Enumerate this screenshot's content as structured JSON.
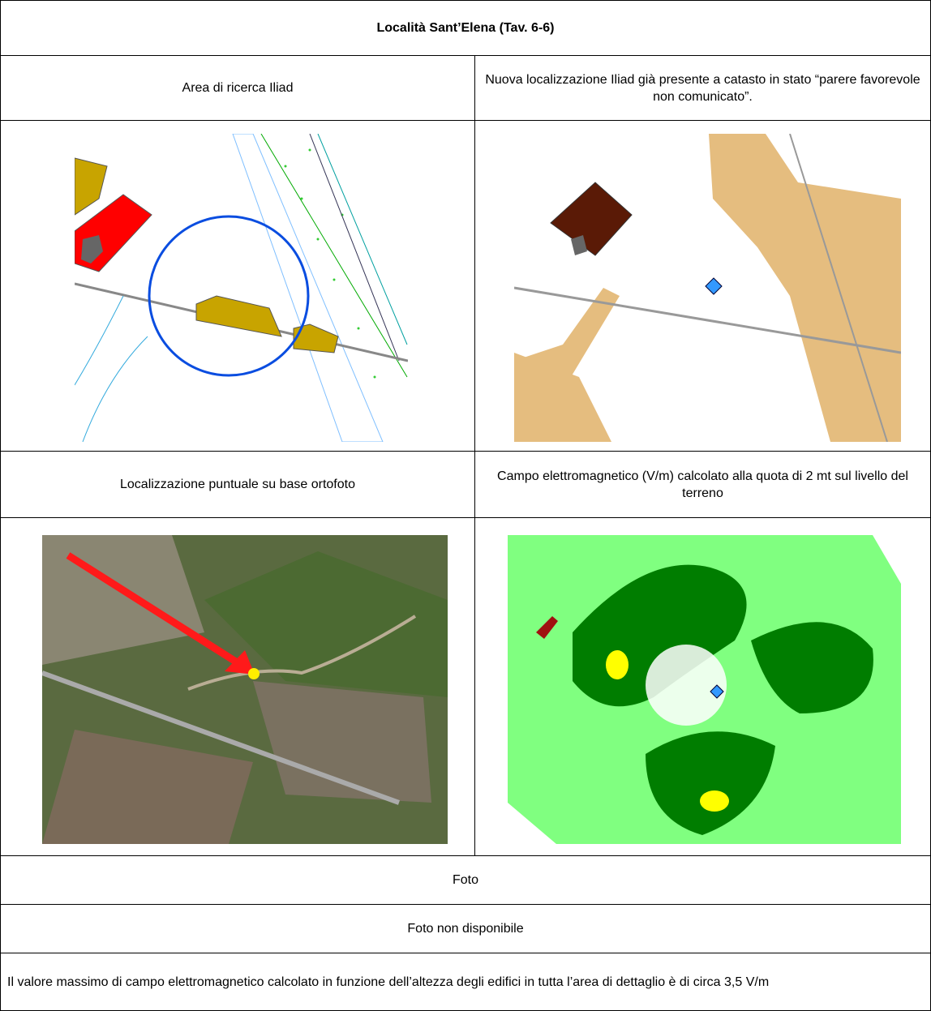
{
  "header": {
    "title": "Località Sant’Elena (Tav. 6-6)"
  },
  "table": {
    "rows": [
      [
        "Area di ricerca Iliad",
        "Nuova localizzazione Iliad già presente a catasto in stato “parere favorevole non comunicato”."
      ],
      [
        "Localizzazione puntuale su base ortofoto",
        "Campo elettromagnetico (V/m) calcolato alla quota di 2 mt sul livello del terreno"
      ]
    ]
  },
  "photo": {
    "heading": "Foto",
    "status": "Foto non disponibile"
  },
  "note": "Il valore massimo di campo elettromagnetico calcolato in funzione dell’altezza degli edifici in tutta l’area di dettaglio è di circa 3,5 V/m"
}
